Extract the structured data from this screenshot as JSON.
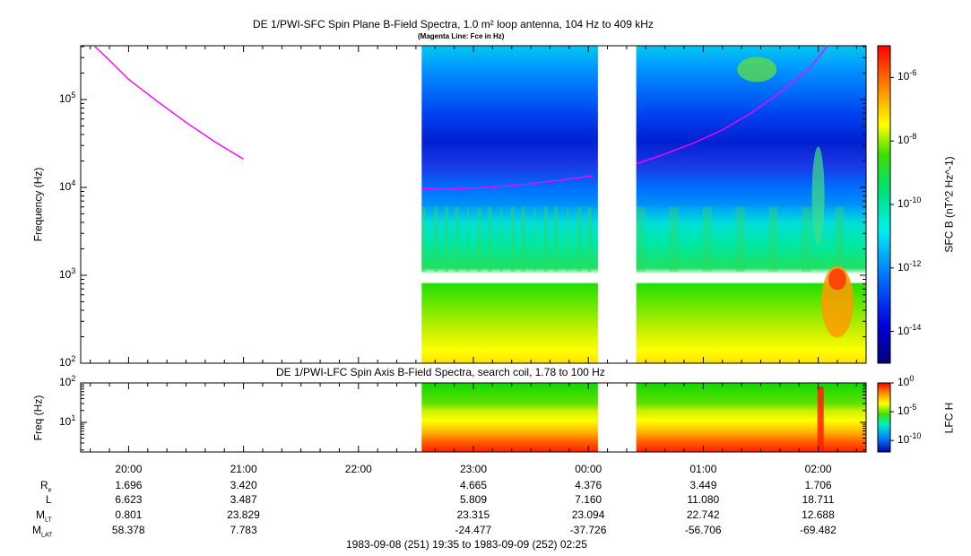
{
  "chart_data": [
    {
      "type": "heatmap",
      "title": "DE 1/PWI-SFC  Spin Plane B-Field Spectra, 1.0 m² loop antenna, 104 Hz to 409 kHz",
      "subtitle": "(Magenta Line: Fce in Hz)",
      "ylabel": "Frequency (Hz)",
      "yscale": "log",
      "ylim": [
        100,
        409000
      ],
      "y_ticks": [
        "10^2",
        "10^3",
        "10^4",
        "10^5"
      ],
      "colorbar_label": "SFC B (nT^2 Hz^-1)",
      "colorbar_scale": "log",
      "colorbar_range": [
        1e-15,
        1e-05
      ],
      "colorbar_ticks": [
        "10^-6",
        "10^-8",
        "10^-10",
        "10^-12",
        "10^-14"
      ],
      "data_gaps": [
        [
          "19:35",
          "22:33"
        ],
        [
          "00:05",
          "00:25"
        ]
      ],
      "line": {
        "name": "Fce",
        "color": "#ff00ff",
        "segments": [
          [
            [
              "19:42",
              409000
            ],
            [
              "19:50",
              280000
            ],
            [
              "20:00",
              170000
            ],
            [
              "20:15",
              95000
            ],
            [
              "20:30",
              55000
            ],
            [
              "20:45",
              33000
            ],
            [
              "21:00",
              21000
            ]
          ],
          [
            [
              "22:33",
              9700
            ],
            [
              "22:45",
              9500
            ],
            [
              "23:00",
              9800
            ],
            [
              "23:15",
              10300
            ],
            [
              "23:30",
              11000
            ],
            [
              "23:45",
              12000
            ],
            [
              "00:02",
              13500
            ]
          ],
          [
            [
              "00:25",
              18500
            ],
            [
              "00:40",
              24000
            ],
            [
              "00:55",
              32000
            ],
            [
              "01:10",
              45000
            ],
            [
              "01:25",
              70000
            ],
            [
              "01:40",
              120000
            ],
            [
              "01:55",
              220000
            ],
            [
              "02:05",
              409000
            ]
          ]
        ]
      }
    },
    {
      "type": "heatmap",
      "title": "DE 1/PWI-LFC  Spin Axis B-Field Spectra, search coil, 1.78 to 100 Hz",
      "ylabel": "Freq (Hz)",
      "yscale": "log",
      "ylim": [
        1.78,
        100
      ],
      "y_ticks": [
        "10^1",
        "10^2"
      ],
      "colorbar_label": "LFC H",
      "colorbar_scale": "log",
      "colorbar_range": [
        1e-12,
        1
      ],
      "colorbar_ticks": [
        "10^0",
        "10^-5",
        "10^-10"
      ],
      "data_gaps": [
        [
          "19:35",
          "22:33"
        ],
        [
          "00:05",
          "00:25"
        ]
      ]
    }
  ],
  "x_axis": {
    "range": [
      "19:35",
      "02:25"
    ],
    "tick_labels": [
      "20:00",
      "21:00",
      "22:00",
      "23:00",
      "00:00",
      "01:00",
      "02:00"
    ]
  },
  "ephemeris": [
    {
      "label": "R",
      "sub": "e",
      "values": [
        "1.696",
        "3.420",
        "",
        "4.665",
        "4.376",
        "3.449",
        "1.706"
      ]
    },
    {
      "label": "L",
      "sub": "",
      "values": [
        "6.623",
        "3.487",
        "",
        "5.809",
        "7.160",
        "11.080",
        "18.711"
      ]
    },
    {
      "label": "M",
      "sub": "LT",
      "values": [
        "0.801",
        "23.829",
        "",
        "23.315",
        "23.094",
        "22.742",
        "12.688"
      ]
    },
    {
      "label": "M",
      "sub": "LAT",
      "values": [
        "58.378",
        "7.783",
        "",
        "-24.477",
        "-37.726",
        "-56.706",
        "-69.482"
      ]
    }
  ],
  "date_range": "1983-09-08 (251) 19:35 to 1983-09-09 (252) 02:25",
  "colors": {
    "fce_line": "#ff00ff",
    "axis": "#000000"
  }
}
